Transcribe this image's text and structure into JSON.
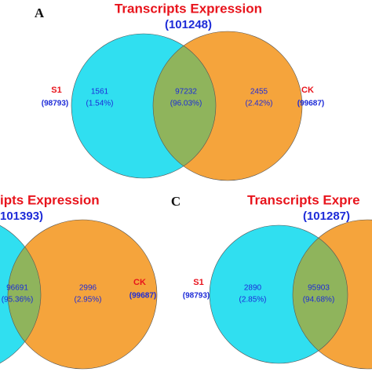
{
  "panels": [
    {
      "letter": "A",
      "title": "Transcripts Expression",
      "total": "(101248)",
      "sets": [
        {
          "name": "S1",
          "count": "(98793)"
        },
        {
          "name": "CK",
          "count": "(99687)"
        }
      ],
      "regions": [
        {
          "count": "1561",
          "percent": "(1.54%)"
        },
        {
          "count": "97232",
          "percent": "(96.03%)"
        },
        {
          "count": "2455",
          "percent": "(2.42%)"
        }
      ]
    },
    {
      "title": "ipts Expression",
      "total": "101393)",
      "sets": [
        {
          "name": "CK",
          "count": "(99687)"
        }
      ],
      "regions": [
        {
          "count": "96691",
          "percent": "(95.36%)"
        },
        {
          "count": "2996",
          "percent": "(2.95%)"
        }
      ]
    },
    {
      "letter": "C",
      "title": "Transcripts Expre",
      "total": "(101287)",
      "sets": [
        {
          "name": "S1",
          "count": "(98793)"
        }
      ],
      "regions": [
        {
          "count": "2890",
          "percent": "(2.85%)"
        },
        {
          "count": "95903",
          "percent": "(94.68%)"
        }
      ]
    }
  ]
}
